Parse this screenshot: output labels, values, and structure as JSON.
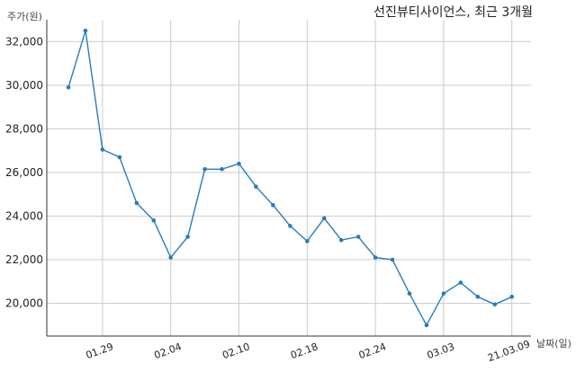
{
  "chart_data": {
    "type": "line",
    "title": "선진뷰티사이언스, 최근 3개월",
    "ylabel": "주가(원)",
    "xlabel": "날짜(일)",
    "ylim": [
      18500,
      33000
    ],
    "yticks": [
      "20,000",
      "22,000",
      "24,000",
      "26,000",
      "28,000",
      "30,000",
      "32,000"
    ],
    "ytick_values": [
      20000,
      22000,
      24000,
      26000,
      28000,
      30000,
      32000
    ],
    "xticks": [
      "01.29",
      "02.04",
      "02.10",
      "02.18",
      "02.24",
      "03.03",
      "21.03.09"
    ],
    "xtick_index": [
      2,
      6,
      10,
      14,
      18,
      22,
      26
    ],
    "grid": true,
    "series": [
      {
        "color": "#2b7bb9",
        "values": [
          29900,
          32500,
          27050,
          26700,
          24600,
          23800,
          22100,
          23050,
          26150,
          26150,
          26400,
          25350,
          24500,
          23550,
          22850,
          23900,
          22900,
          23050,
          22100,
          22000,
          20450,
          19000,
          20450,
          20950,
          20300,
          19950,
          20300
        ]
      }
    ]
  }
}
